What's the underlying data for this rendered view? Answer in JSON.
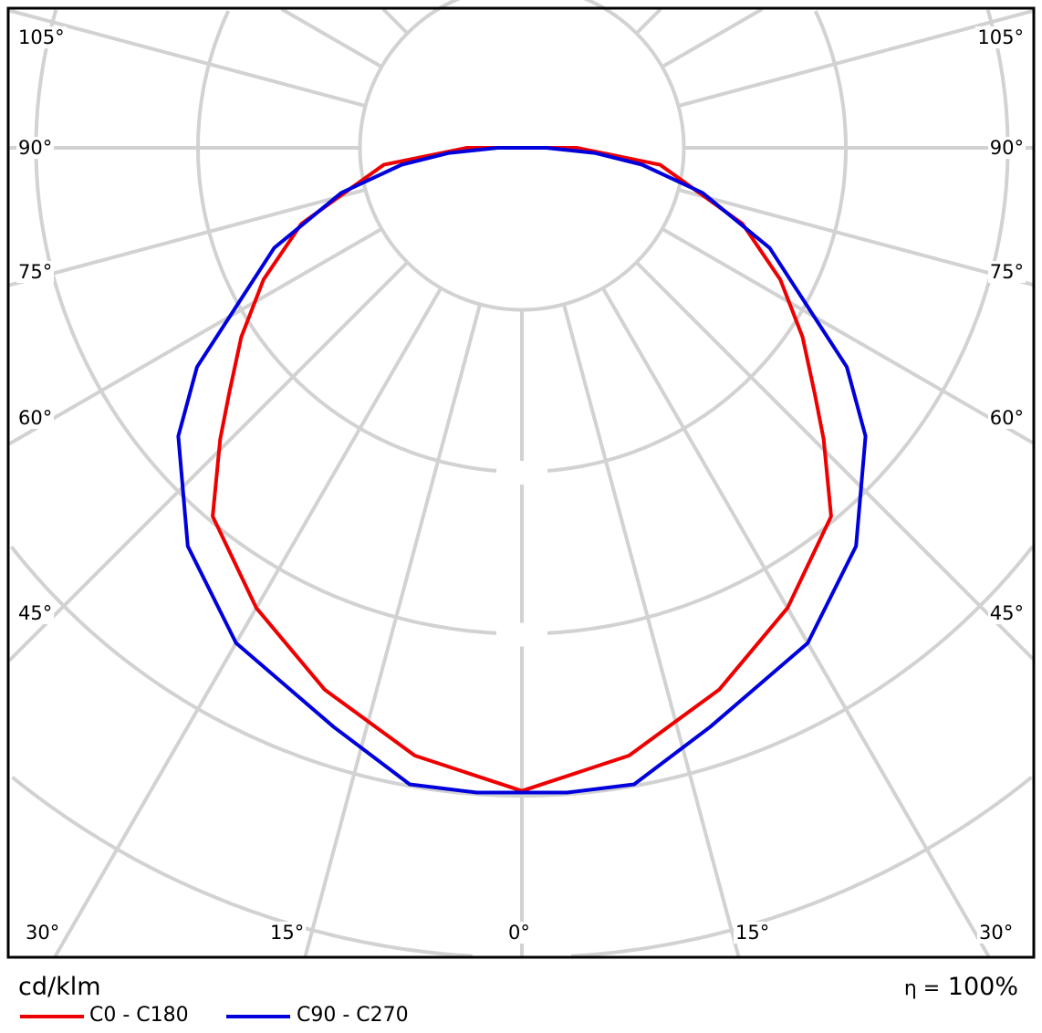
{
  "chart_data": {
    "type": "polar",
    "unit_label": "cd/klm",
    "efficiency_label": "η = 100%",
    "efficiency_symbol": "η =",
    "efficiency_value": "100%",
    "angle_labels_left": [
      "105°",
      "90°",
      "75°",
      "60°",
      "45°"
    ],
    "angle_labels_bottom": [
      "30°",
      "15°",
      "0°",
      "15°",
      "30°"
    ],
    "angle_labels_right": [
      "105°",
      "90°",
      "75°",
      "60°",
      "45°"
    ],
    "spoke_step_deg": 15,
    "grid": true,
    "ring_labels_visible": false,
    "legend_placement": "bottom-left",
    "series": [
      {
        "name": "C0 - C180",
        "color": "#ee0000",
        "gamma_deg": [
          0,
          10,
          20,
          30,
          40,
          46,
          50,
          56,
          63,
          71,
          83,
          90
        ],
        "relative_intensity_rings": [
          3.97,
          3.81,
          3.56,
          3.28,
          2.97,
          2.59,
          2.36,
          2.09,
          1.79,
          1.44,
          0.86,
          0.34
        ]
      },
      {
        "name": "C90 - C270",
        "color": "#0000dd",
        "gamma_deg": [
          0,
          4,
          10,
          18,
          30,
          40,
          50,
          56,
          68,
          76,
          82,
          86,
          90
        ],
        "relative_intensity_rings": [
          3.98,
          3.99,
          3.99,
          3.76,
          3.53,
          3.21,
          2.77,
          2.42,
          1.65,
          1.15,
          0.75,
          0.45,
          0.15
        ]
      }
    ]
  }
}
